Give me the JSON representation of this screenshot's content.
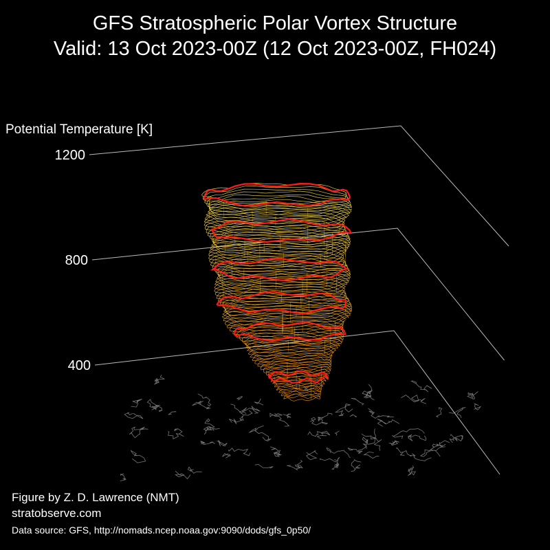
{
  "chart_data": {
    "type": "vortex3d",
    "title": [
      "GFS Stratospheric Polar Vortex Structure",
      "Valid: 13 Oct 2023-00Z  (12 Oct 2023-00Z, FH024)"
    ],
    "zlabel": "Potential Temperature [K]",
    "zlim": [
      400,
      1200
    ],
    "zticks": [
      400,
      800,
      1200
    ],
    "grid": true,
    "credits": [
      "Figure by Z. D. Lawrence (NMT)",
      "stratobserve.com"
    ],
    "source": "Data source: GFS, http://nomads.ncep.noaa.gov:9090/dods/gfs_0p50/"
  }
}
